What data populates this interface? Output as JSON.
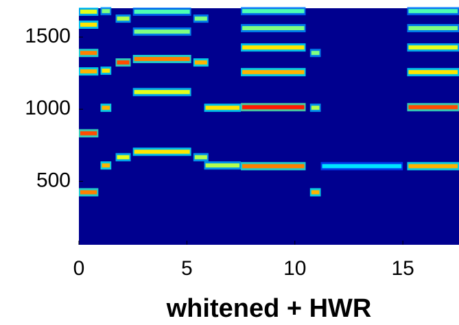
{
  "chart_data": {
    "type": "spectrogram",
    "xlabel": "whitened + HWR",
    "xlim": [
      0,
      17.6
    ],
    "ylim": [
      60,
      1700
    ],
    "xticks": [
      0,
      5,
      10,
      15
    ],
    "yticks": [
      500,
      1000,
      1500
    ],
    "background": "#00008f",
    "tracks": [
      {
        "t": [
          0,
          0.9
        ],
        "f": 424,
        "level": 0.75
      },
      {
        "t": [
          0,
          0.9
        ],
        "f": 833,
        "level": 0.8
      },
      {
        "t": [
          0,
          0.9
        ],
        "f": 1262,
        "level": 0.7
      },
      {
        "t": [
          0,
          0.9
        ],
        "f": 1390,
        "level": 0.75
      },
      {
        "t": [
          0,
          0.9
        ],
        "f": 1586,
        "level": 0.65
      },
      {
        "t": [
          0,
          0.9
        ],
        "f": 1676,
        "level": 0.6
      },
      {
        "t": [
          1.0,
          1.5
        ],
        "f": 610,
        "level": 0.7
      },
      {
        "t": [
          1.0,
          1.5
        ],
        "f": 1010,
        "level": 0.7
      },
      {
        "t": [
          1.0,
          1.5
        ],
        "f": 1267,
        "level": 0.65
      },
      {
        "t": [
          1.0,
          1.5
        ],
        "f": 1680,
        "level": 0.5
      },
      {
        "t": [
          1.7,
          2.4
        ],
        "f": 667,
        "level": 0.6
      },
      {
        "t": [
          1.7,
          2.4
        ],
        "f": 1324,
        "level": 0.8
      },
      {
        "t": [
          1.7,
          2.4
        ],
        "f": 1628,
        "level": 0.55
      },
      {
        "t": [
          2.5,
          5.2
        ],
        "f": 705,
        "level": 0.65
      },
      {
        "t": [
          2.5,
          5.2
        ],
        "f": 1119,
        "level": 0.6
      },
      {
        "t": [
          2.5,
          5.2
        ],
        "f": 1348,
        "level": 0.75
      },
      {
        "t": [
          2.5,
          5.2
        ],
        "f": 1538,
        "level": 0.5
      },
      {
        "t": [
          2.5,
          5.2
        ],
        "f": 1676,
        "level": 0.45
      },
      {
        "t": [
          5.3,
          6.0
        ],
        "f": 667,
        "level": 0.55
      },
      {
        "t": [
          5.3,
          6.0
        ],
        "f": 1324,
        "level": 0.7
      },
      {
        "t": [
          5.3,
          6.0
        ],
        "f": 1628,
        "level": 0.5
      },
      {
        "t": [
          5.8,
          7.5
        ],
        "f": 610,
        "level": 0.55
      },
      {
        "t": [
          5.8,
          7.5
        ],
        "f": 1010,
        "level": 0.65
      },
      {
        "t": [
          7.5,
          10.5
        ],
        "f": 605,
        "level": 0.75
      },
      {
        "t": [
          7.5,
          10.5
        ],
        "f": 1014,
        "level": 0.85
      },
      {
        "t": [
          7.5,
          10.5
        ],
        "f": 1257,
        "level": 0.7
      },
      {
        "t": [
          7.5,
          10.5
        ],
        "f": 1428,
        "level": 0.65
      },
      {
        "t": [
          7.5,
          10.5
        ],
        "f": 1562,
        "level": 0.5
      },
      {
        "t": [
          7.5,
          10.5
        ],
        "f": 1680,
        "level": 0.45
      },
      {
        "t": [
          10.7,
          11.2
        ],
        "f": 424,
        "level": 0.7
      },
      {
        "t": [
          10.7,
          11.2
        ],
        "f": 1010,
        "level": 0.55
      },
      {
        "t": [
          10.7,
          11.2
        ],
        "f": 1390,
        "level": 0.5
      },
      {
        "t": [
          11.2,
          15.0
        ],
        "f": 605,
        "level": 0.35
      },
      {
        "t": [
          15.2,
          17.6
        ],
        "f": 605,
        "level": 0.7
      },
      {
        "t": [
          15.2,
          17.6
        ],
        "f": 1014,
        "level": 0.8
      },
      {
        "t": [
          15.2,
          17.6
        ],
        "f": 1257,
        "level": 0.65
      },
      {
        "t": [
          15.2,
          17.6
        ],
        "f": 1428,
        "level": 0.6
      },
      {
        "t": [
          15.2,
          17.6
        ],
        "f": 1562,
        "level": 0.5
      },
      {
        "t": [
          15.2,
          17.6
        ],
        "f": 1680,
        "level": 0.45
      }
    ]
  }
}
